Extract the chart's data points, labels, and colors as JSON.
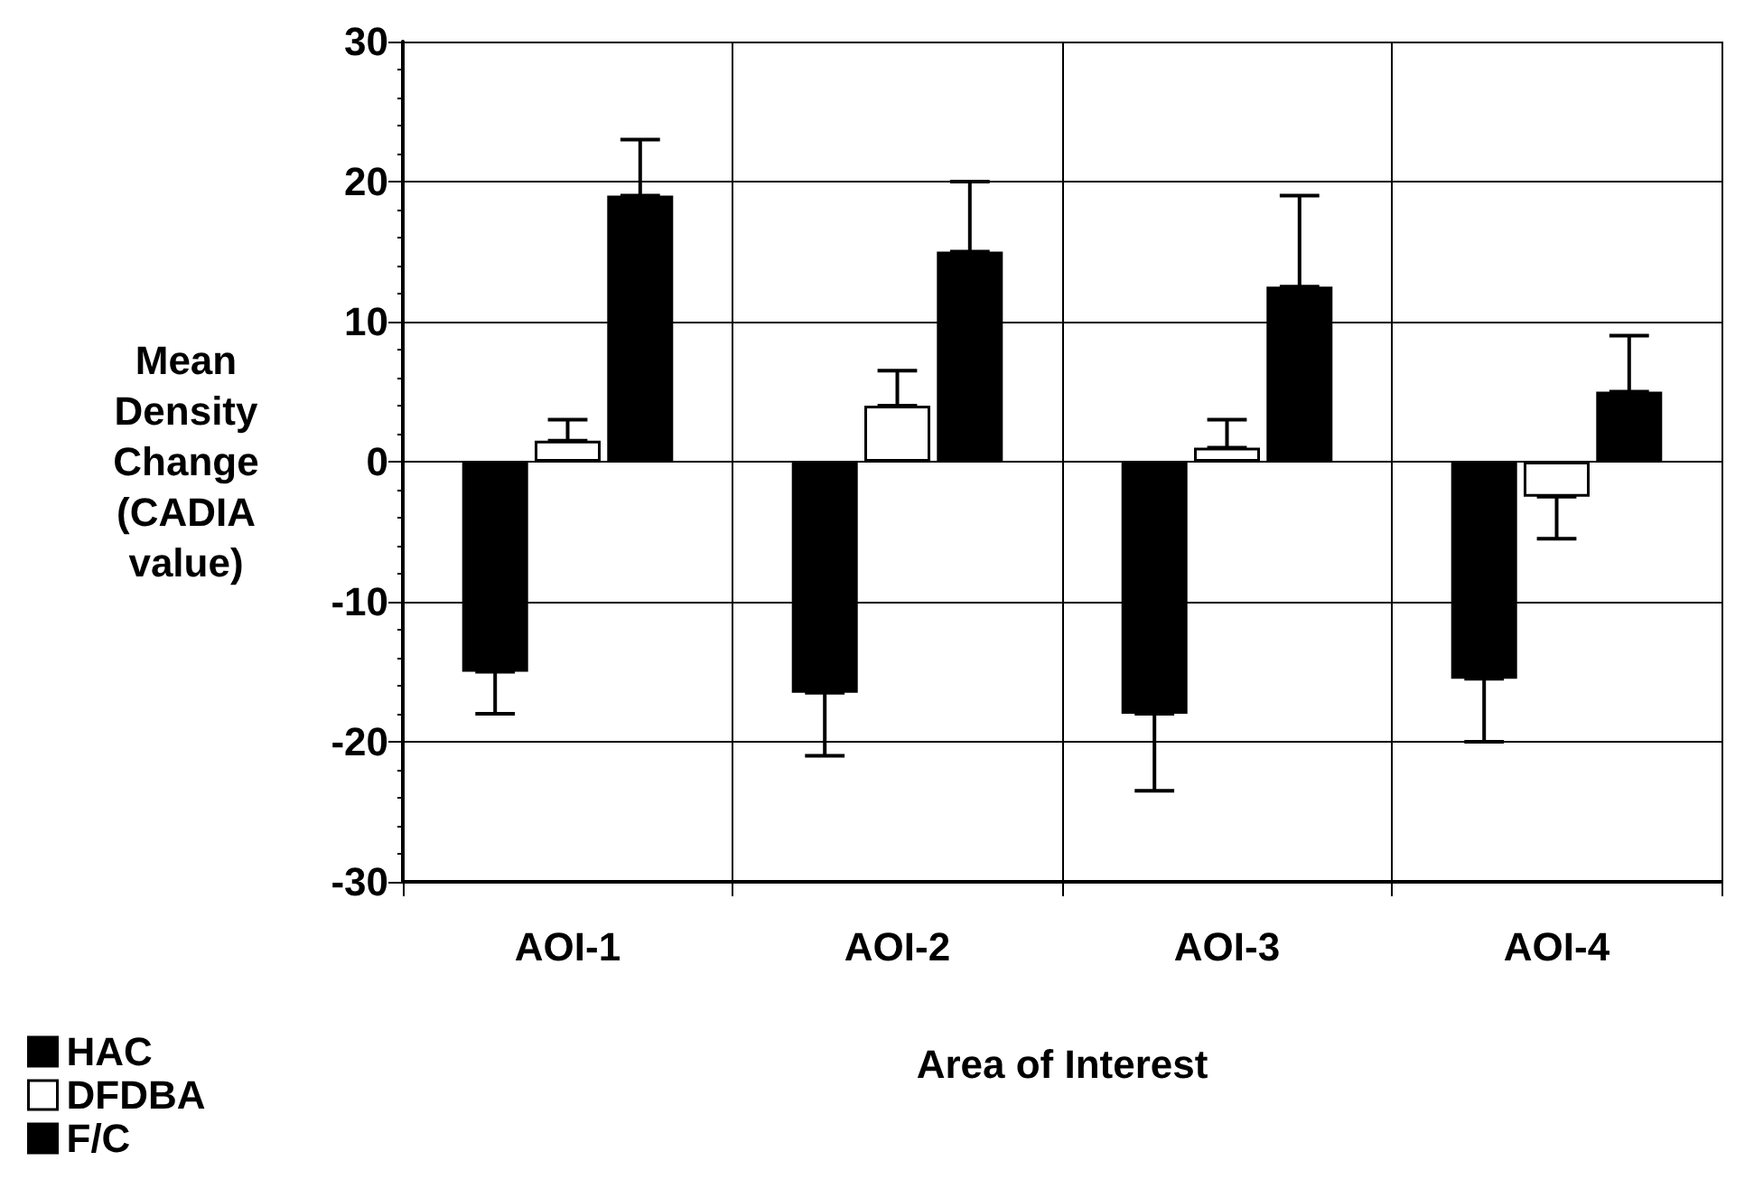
{
  "chart_data": {
    "type": "bar",
    "xlabel": "Area of Interest",
    "ylabel": "Mean Density Change (CADIA value)",
    "categories": [
      "AOI-1",
      "AOI-2",
      "AOI-3",
      "AOI-4"
    ],
    "series": [
      {
        "name": "HAC",
        "color": "#000000",
        "values": [
          -15,
          -16.5,
          -18,
          -15.5
        ],
        "errors": [
          [
            -18,
            -15
          ],
          [
            -21,
            -16.5
          ],
          [
            -23.5,
            -18
          ],
          [
            -20,
            -15.5
          ]
        ]
      },
      {
        "name": "DFDBA",
        "color": "#ffffff",
        "values": [
          1.5,
          4,
          1,
          -2.5
        ],
        "errors": [
          [
            1.5,
            3
          ],
          [
            4,
            6.5
          ],
          [
            1,
            3
          ],
          [
            -5.5,
            -2.5
          ]
        ]
      },
      {
        "name": "F/C",
        "color": "#000000",
        "values": [
          19,
          15,
          12.5,
          5
        ],
        "errors": [
          [
            19,
            23
          ],
          [
            15,
            20
          ],
          [
            12.5,
            19
          ],
          [
            5,
            9
          ]
        ]
      }
    ],
    "ylim": [
      -30,
      30
    ],
    "yticks": [
      -30,
      -20,
      -10,
      0,
      10,
      20,
      30
    ],
    "grid": true,
    "legend": "bottom left"
  }
}
